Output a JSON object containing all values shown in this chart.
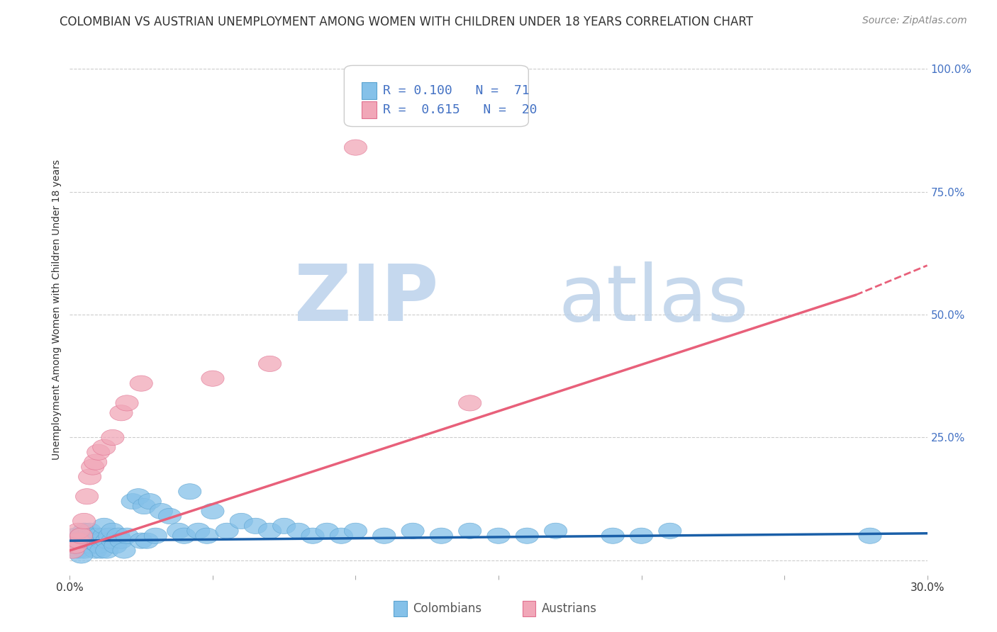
{
  "title": "COLOMBIAN VS AUSTRIAN UNEMPLOYMENT AMONG WOMEN WITH CHILDREN UNDER 18 YEARS CORRELATION CHART",
  "source": "Source: ZipAtlas.com",
  "ylabel": "Unemployment Among Women with Children Under 18 years",
  "xlim": [
    0.0,
    0.3
  ],
  "ylim": [
    -0.03,
    1.05
  ],
  "xticks": [
    0.0,
    0.05,
    0.1,
    0.15,
    0.2,
    0.25,
    0.3
  ],
  "xtick_labels": [
    "0.0%",
    "",
    "",
    "",
    "",
    "",
    "30.0%"
  ],
  "ytick_labels_right": [
    "25.0%",
    "50.0%",
    "75.0%",
    "100.0%"
  ],
  "yticks_right": [
    0.25,
    0.5,
    0.75,
    1.0
  ],
  "colombian_color": "#85c1e9",
  "colombian_edge": "#5ba3d0",
  "austrian_color": "#f1a7b8",
  "austrian_edge": "#e07090",
  "blue_line_color": "#1a5fa8",
  "pink_line_color": "#e8607a",
  "dashed_line_color": "#e8607a",
  "watermark_zip_color": "#c5d8ee",
  "watermark_atlas_color": "#b8cfe8",
  "title_fontsize": 12,
  "axis_label_fontsize": 10,
  "tick_fontsize": 11,
  "legend_fontsize": 13,
  "colombian_x": [
    0.001,
    0.002,
    0.002,
    0.003,
    0.003,
    0.004,
    0.004,
    0.005,
    0.005,
    0.005,
    0.006,
    0.006,
    0.007,
    0.007,
    0.008,
    0.008,
    0.009,
    0.009,
    0.01,
    0.01,
    0.011,
    0.011,
    0.012,
    0.012,
    0.013,
    0.013,
    0.014,
    0.015,
    0.015,
    0.016,
    0.017,
    0.018,
    0.019,
    0.02,
    0.022,
    0.024,
    0.025,
    0.026,
    0.027,
    0.028,
    0.03,
    0.032,
    0.035,
    0.038,
    0.04,
    0.042,
    0.045,
    0.048,
    0.05,
    0.055,
    0.06,
    0.065,
    0.07,
    0.075,
    0.08,
    0.085,
    0.09,
    0.095,
    0.1,
    0.11,
    0.12,
    0.13,
    0.14,
    0.15,
    0.16,
    0.17,
    0.19,
    0.2,
    0.21,
    0.28,
    0.004
  ],
  "colombian_y": [
    0.04,
    0.03,
    0.05,
    0.04,
    0.02,
    0.05,
    0.03,
    0.04,
    0.02,
    0.06,
    0.03,
    0.05,
    0.04,
    0.06,
    0.03,
    0.05,
    0.04,
    0.02,
    0.05,
    0.03,
    0.04,
    0.02,
    0.05,
    0.07,
    0.04,
    0.02,
    0.05,
    0.04,
    0.06,
    0.03,
    0.05,
    0.04,
    0.02,
    0.05,
    0.12,
    0.13,
    0.04,
    0.11,
    0.04,
    0.12,
    0.05,
    0.1,
    0.09,
    0.06,
    0.05,
    0.14,
    0.06,
    0.05,
    0.1,
    0.06,
    0.08,
    0.07,
    0.06,
    0.07,
    0.06,
    0.05,
    0.06,
    0.05,
    0.06,
    0.05,
    0.06,
    0.05,
    0.06,
    0.05,
    0.05,
    0.06,
    0.05,
    0.05,
    0.06,
    0.05,
    0.01
  ],
  "austrian_x": [
    0.001,
    0.002,
    0.003,
    0.003,
    0.004,
    0.005,
    0.006,
    0.007,
    0.008,
    0.009,
    0.01,
    0.012,
    0.015,
    0.018,
    0.02,
    0.025,
    0.05,
    0.07,
    0.1,
    0.14
  ],
  "austrian_y": [
    0.02,
    0.03,
    0.04,
    0.06,
    0.05,
    0.08,
    0.13,
    0.17,
    0.19,
    0.2,
    0.22,
    0.23,
    0.25,
    0.3,
    0.32,
    0.36,
    0.37,
    0.4,
    0.84,
    0.32
  ],
  "blue_line_x": [
    0.0,
    0.3
  ],
  "blue_line_y": [
    0.04,
    0.055
  ],
  "pink_line_x": [
    0.0,
    0.275
  ],
  "pink_line_y": [
    0.02,
    0.54
  ],
  "dashed_line_x": [
    0.275,
    0.3
  ],
  "dashed_line_y": [
    0.54,
    0.6
  ],
  "bg_color": "#ffffff",
  "grid_color": "#cccccc"
}
